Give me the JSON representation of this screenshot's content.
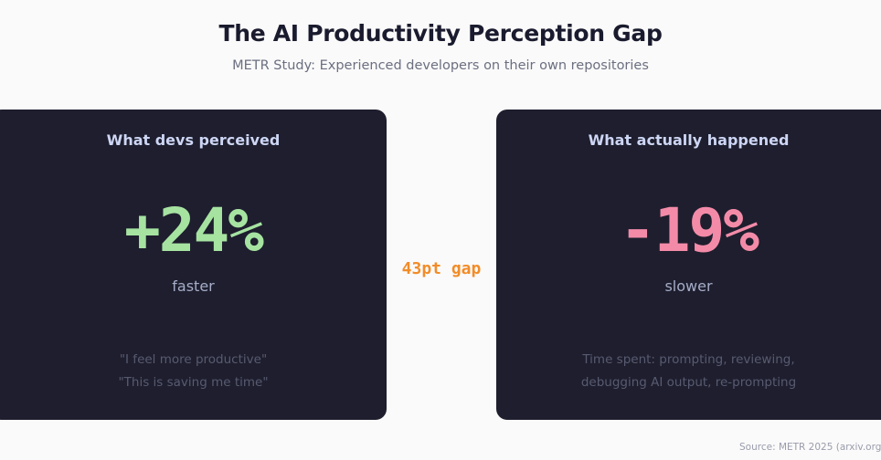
{
  "header": {
    "title": "The AI Productivity Perception Gap",
    "subtitle": "METR Study: Experienced developers on their own repositories"
  },
  "perceived": {
    "heading": "What devs perceived",
    "value": "+24%",
    "unit": "faster",
    "quote_1": "\"I feel more productive\"",
    "quote_2": "\"This is saving me time\""
  },
  "actual": {
    "heading": "What actually happened",
    "value": "-19%",
    "unit": "slower",
    "note_1": "Time spent: prompting, reviewing,",
    "note_2": "debugging AI output, re-prompting"
  },
  "gap_label": "43pt gap",
  "source": "Source: METR 2025 (arxiv.org/",
  "colors": {
    "card_bg": "#1e1e2e",
    "positive": "#a6e3a1",
    "negative": "#f38ba8",
    "gap_accent": "#f28c28"
  }
}
